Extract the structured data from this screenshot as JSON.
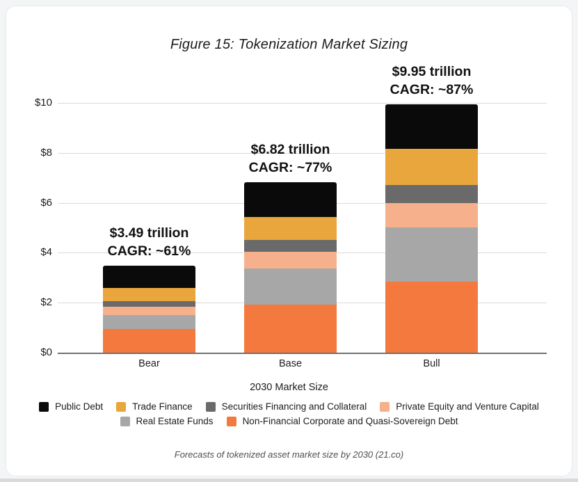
{
  "page": {
    "caption": "Forecasts of tokenized asset market size by 2030 (21.co)"
  },
  "chart_data": {
    "type": "bar",
    "stacked": true,
    "title": "Figure 15: Tokenization Market Sizing",
    "xlabel": "2030 Market Size",
    "ylabel": "",
    "categories": [
      "Bear",
      "Base",
      "Bull"
    ],
    "ylim": [
      0,
      10
    ],
    "yticks": [
      0,
      2,
      4,
      6,
      8,
      10
    ],
    "ytick_labels": [
      "$0",
      "$2",
      "$4",
      "$6",
      "$8",
      "$10"
    ],
    "grid": "horizontal",
    "series": [
      {
        "name": "Non-Financial Corporate and Quasi-Sovereign Debt",
        "color": "#F4793E",
        "values": [
          0.95,
          1.92,
          2.85
        ]
      },
      {
        "name": "Real Estate Funds",
        "color": "#A7A7A7",
        "values": [
          0.55,
          1.46,
          2.15
        ]
      },
      {
        "name": "Private Equity and Venture Capital",
        "color": "#F6B18C",
        "values": [
          0.34,
          0.67,
          1.0
        ]
      },
      {
        "name": "Securities Financing and Collateral",
        "color": "#6A6A6A",
        "values": [
          0.22,
          0.45,
          0.7
        ]
      },
      {
        "name": "Trade Finance",
        "color": "#E9A63C",
        "values": [
          0.53,
          0.94,
          1.45
        ]
      },
      {
        "name": "Public Debt",
        "color": "#0A0A0A",
        "values": [
          0.9,
          1.38,
          1.8
        ]
      }
    ],
    "totals": [
      3.49,
      6.82,
      9.95
    ],
    "annotations": [
      {
        "category": "Bear",
        "line1": "$3.49 trillion",
        "line2": "CAGR: ~61%"
      },
      {
        "category": "Base",
        "line1": "$6.82 trillion",
        "line2": "CAGR: ~77%"
      },
      {
        "category": "Bull",
        "line1": "$9.95 trillion",
        "line2": "CAGR: ~87%"
      }
    ],
    "legend_rows": [
      [
        "Public Debt",
        "Trade Finance",
        "Securities Financing and Collateral",
        "Private Equity and Venture Capital"
      ],
      [
        "Real Estate Funds",
        "Non-Financial Corporate and Quasi-Sovereign Debt"
      ]
    ],
    "legend_position": "bottom"
  }
}
